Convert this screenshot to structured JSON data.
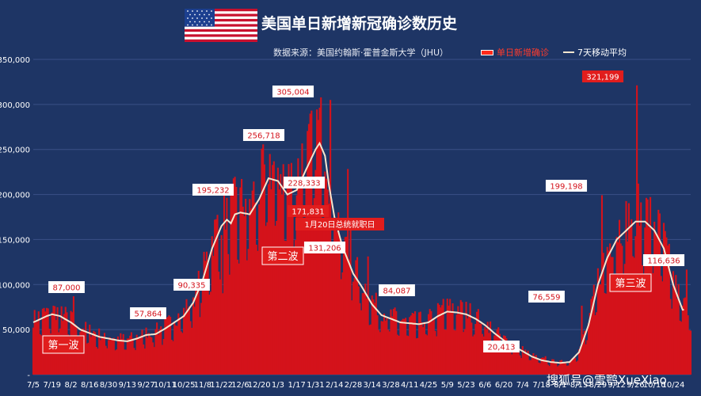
{
  "title": "美国单日新增新冠确诊数历史",
  "subtitle": "数据来源：美国约翰斯·霍普金斯大学（JHU）",
  "watermark": "搜狐号@雪鹗XueXiao",
  "colors": {
    "background": "#1e3565",
    "bars": "#d4121b",
    "bar_highlight": "#ff2a1a",
    "line": "#f5e6cf",
    "label_box": "#ffffff",
    "label_text": "#d4121b",
    "red_box": "#e11d1d"
  },
  "chart_data": {
    "type": "bar",
    "title": "美国单日新增新冠确诊数历史",
    "ylim": [
      0,
      350000
    ],
    "y_ticks": [
      0,
      50000,
      100000,
      150000,
      200000,
      250000,
      300000,
      350000
    ],
    "y_tick_labels": [
      "-",
      "50,000",
      "100,000",
      "150,000",
      "200,000",
      "250,000",
      "300,000",
      "350,000"
    ],
    "x_tick_labels": [
      "7/5",
      "7/19",
      "8/2",
      "8/16",
      "8/30",
      "9/13",
      "9/27",
      "10/11",
      "10/25",
      "11/8",
      "11/22",
      "12/6",
      "12/20",
      "1/3",
      "1/17",
      "1/31",
      "2/14",
      "2/28",
      "3/14",
      "3/28",
      "4/11",
      "4/25",
      "5/9",
      "5/23",
      "6/6",
      "6/20",
      "7/4",
      "7/18",
      "8/1",
      "8/15",
      "8/29",
      "9/12",
      "9/26",
      "10/10",
      "10/24"
    ],
    "legend": [
      {
        "label": "单日新增确诊",
        "kind": "bar"
      },
      {
        "label": "7天移动平均",
        "kind": "line"
      }
    ],
    "series": [
      {
        "name": "7天移动平均",
        "x": [
          0,
          10,
          14,
          20,
          28,
          35,
          42,
          49,
          56,
          63,
          70,
          77,
          84,
          91,
          98,
          105,
          112,
          119,
          126,
          133,
          140,
          144,
          147,
          150,
          154,
          161,
          168,
          175,
          182,
          189,
          196,
          203,
          210,
          213,
          217,
          220,
          224,
          230,
          238,
          245,
          252,
          259,
          266,
          273,
          280,
          287,
          294,
          301,
          308,
          315,
          322,
          329,
          336,
          343,
          350,
          357,
          364,
          371,
          378,
          385,
          392,
          399,
          406,
          413,
          420,
          427,
          434,
          441,
          448,
          455,
          462,
          469,
          476,
          483
        ],
        "values": [
          58000,
          65000,
          67000,
          65000,
          58000,
          50000,
          46000,
          42000,
          40000,
          38000,
          37000,
          40000,
          44000,
          45000,
          51000,
          58000,
          65000,
          80000,
          105000,
          140000,
          165000,
          172000,
          168000,
          178000,
          180000,
          178000,
          195000,
          218000,
          215000,
          200000,
          205000,
          228000,
          250000,
          257000,
          243000,
          210000,
          175000,
          142000,
          112000,
          96000,
          78000,
          66000,
          62000,
          58000,
          57000,
          56000,
          58000,
          65000,
          70000,
          69000,
          67000,
          62000,
          55000,
          46000,
          38000,
          32000,
          26000,
          20000,
          16000,
          14000,
          13000,
          14000,
          25000,
          55000,
          100000,
          130000,
          150000,
          160000,
          170000,
          170000,
          160000,
          140000,
          100000,
          72000
        ]
      }
    ],
    "daily_annotations": [
      {
        "x": 30,
        "label": "87,000",
        "value": 87000
      },
      {
        "x": 92,
        "label": "57,864",
        "value": 57864
      },
      {
        "x": 141,
        "label": "90,335",
        "value": 90335
      },
      {
        "x": 158,
        "label": "195,232",
        "value": 195232
      },
      {
        "x": 200,
        "label": "256,718",
        "value": 256718
      },
      {
        "x": 221,
        "label": "305,004",
        "value": 305004
      },
      {
        "x": 234,
        "label": "228,333",
        "value": 228333
      },
      {
        "x": 236,
        "label": "171,831",
        "value": 171831
      },
      {
        "x": 249,
        "label": "131,206",
        "value": 131206
      },
      {
        "x": 305,
        "label": "84,087",
        "value": 84087
      },
      {
        "x": 381,
        "label": "20,413",
        "value": 20413
      },
      {
        "x": 408,
        "label": "76,559",
        "value": 76559
      },
      {
        "x": 423,
        "label": "199,198",
        "value": 199198
      },
      {
        "x": 449,
        "label": "321,199",
        "value": 321199
      },
      {
        "x": 486,
        "label": "116,636",
        "value": 116636
      }
    ],
    "annotations": [
      {
        "text": "1月20日总统就职日"
      },
      {
        "text": "第一波"
      },
      {
        "text": "第二波"
      },
      {
        "text": "第三波"
      }
    ]
  }
}
